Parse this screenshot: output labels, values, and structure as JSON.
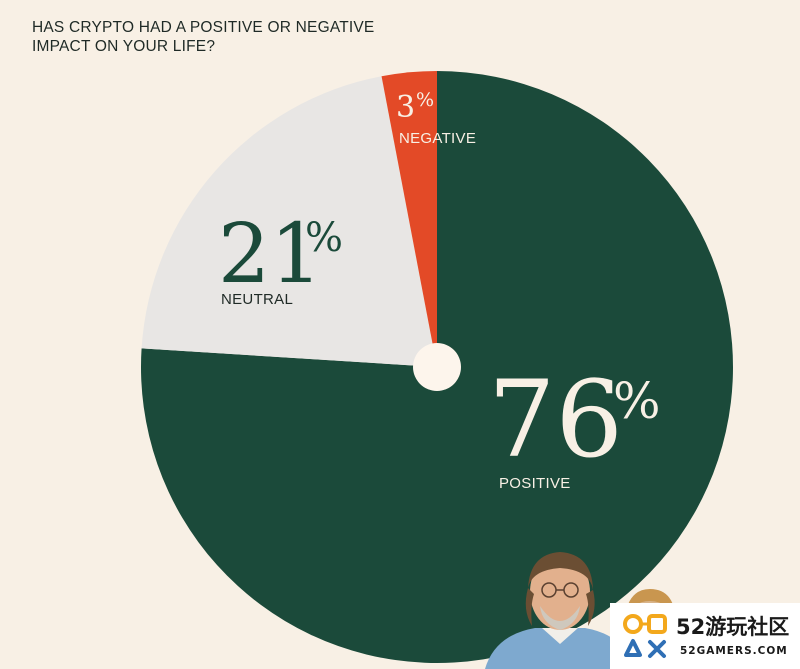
{
  "chart_data": {
    "type": "pie",
    "title_lines": [
      "HAS CRYPTO HAD A POSITIVE OR NEGATIVE",
      "IMPACT ON YOUR LIFE?"
    ],
    "slices": [
      {
        "label": "POSITIVE",
        "value": 76,
        "display": "76",
        "color": "#1b4a3a"
      },
      {
        "label": "NEUTRAL",
        "value": 21,
        "display": "21",
        "color": "#e8e6e4"
      },
      {
        "label": "NEGATIVE",
        "value": 3,
        "display": "3",
        "color": "#e34a27"
      }
    ],
    "percent_symbol": "%",
    "start_angle": "12 o'clock, clockwise",
    "center_hole_color": "#fdf5ec"
  },
  "watermark": {
    "main": "52游玩社区",
    "sub": "52GAMERS.COM"
  }
}
